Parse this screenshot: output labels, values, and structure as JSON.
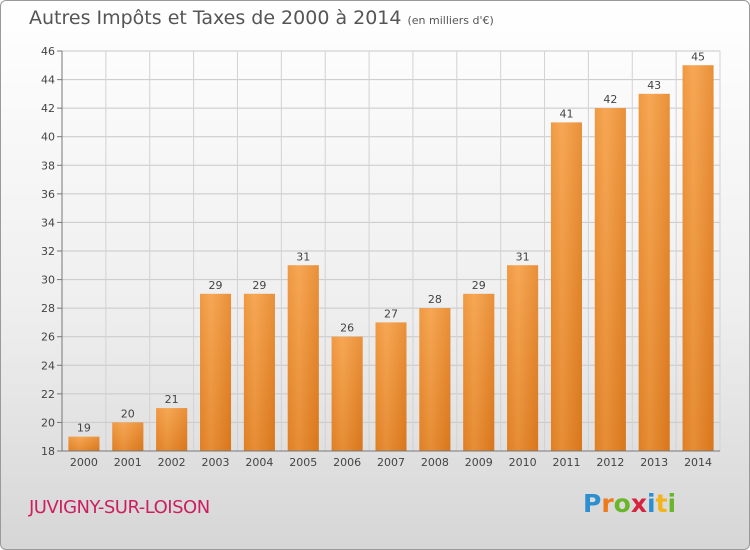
{
  "header": {
    "title": "Autres Impôts et Taxes de 2000 à 2014",
    "subtitle": "(en milliers d'€)"
  },
  "footer": {
    "town": "JUVIGNY-SUR-LOISON",
    "logo_letters": [
      "P",
      "r",
      "o",
      "x",
      "i",
      "t",
      "i"
    ],
    "logo_colors": [
      "#2c8fd0",
      "#ef7a1a",
      "#6bb52b",
      "#d6243f",
      "#2c8fd0",
      "#f3b31a",
      "#6bb52b"
    ]
  },
  "chart_data": {
    "type": "bar",
    "categories": [
      "2000",
      "2001",
      "2002",
      "2003",
      "2004",
      "2005",
      "2006",
      "2007",
      "2008",
      "2009",
      "2010",
      "2011",
      "2012",
      "2013",
      "2014"
    ],
    "values": [
      19,
      20,
      21,
      29,
      29,
      31,
      26,
      27,
      28,
      29,
      31,
      41,
      42,
      43,
      45
    ],
    "ylim": [
      18,
      46
    ],
    "yticks": [
      18,
      20,
      22,
      24,
      26,
      28,
      30,
      32,
      34,
      36,
      38,
      40,
      42,
      44,
      46
    ],
    "grid": true,
    "bar_color": "#f0922f",
    "xlabel": "",
    "ylabel": ""
  }
}
